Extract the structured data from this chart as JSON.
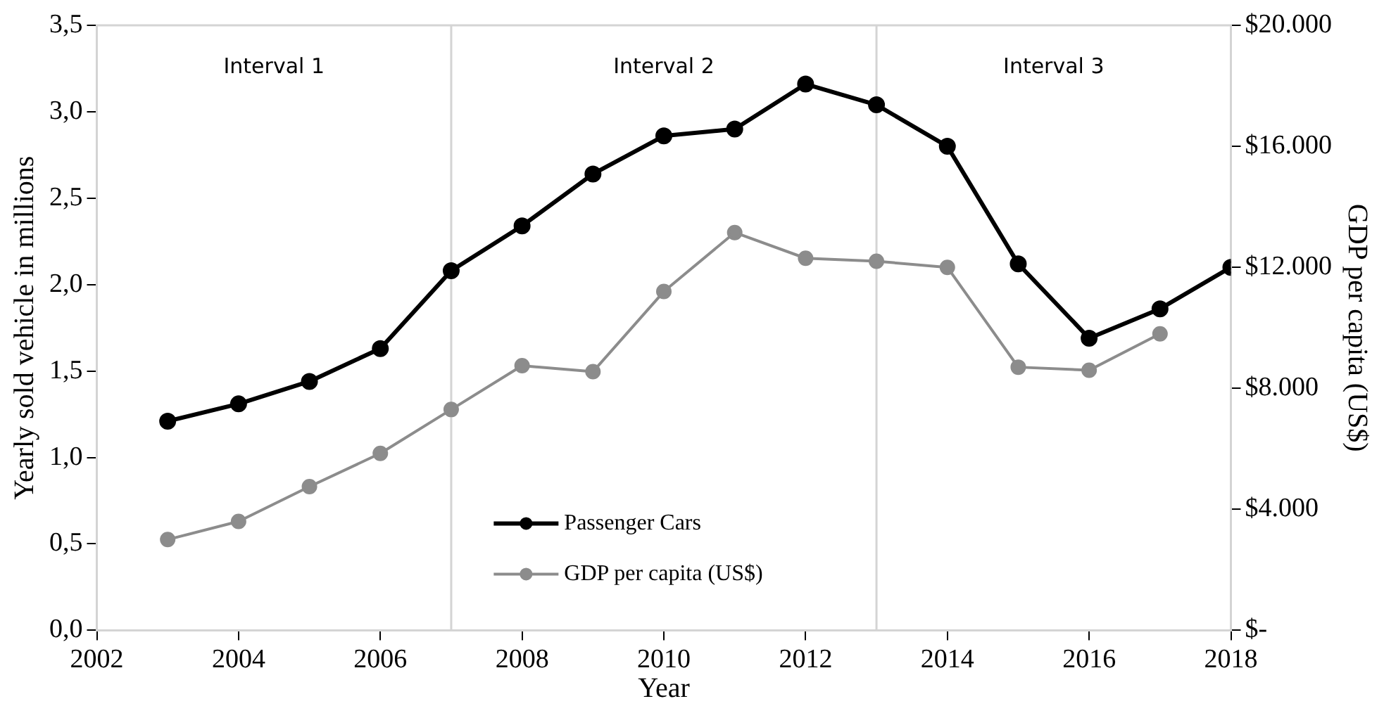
{
  "chart_data": {
    "type": "line",
    "xlabel": "Year",
    "ylabel": "Yearly sold vehicle in millions",
    "y2label": "GDP per capita (US$)",
    "x": [
      2003,
      2004,
      2005,
      2006,
      2007,
      2008,
      2009,
      2010,
      2011,
      2012,
      2013,
      2014,
      2015,
      2016,
      2017,
      2018
    ],
    "series": [
      {
        "name": "Passenger Cars",
        "color": "#000000",
        "values": [
          1.21,
          1.31,
          1.44,
          1.63,
          2.08,
          2.34,
          2.64,
          2.86,
          2.9,
          3.16,
          3.04,
          2.8,
          2.12,
          1.69,
          1.86,
          2.1
        ]
      },
      {
        "name": "GDP per capita (US$)",
        "color": "#8c8c8c",
        "axis": "y2",
        "values": [
          3000,
          3600,
          4750,
          5850,
          7300,
          8750,
          8550,
          11200,
          13150,
          12300,
          12200,
          12000,
          8700,
          8600,
          9800,
          null
        ]
      }
    ],
    "xlim": [
      2002,
      2018
    ],
    "xticks": [
      2002,
      2004,
      2006,
      2008,
      2010,
      2012,
      2014,
      2016,
      2018
    ],
    "ylim": [
      0,
      3.5
    ],
    "yticks": [
      {
        "value": 0,
        "label": "0,0"
      },
      {
        "value": 0.5,
        "label": "0,5"
      },
      {
        "value": 1,
        "label": "1,0"
      },
      {
        "value": 1.5,
        "label": "1,5"
      },
      {
        "value": 2,
        "label": "2,0"
      },
      {
        "value": 2.5,
        "label": "2,5"
      },
      {
        "value": 3,
        "label": "3,0"
      },
      {
        "value": 3.5,
        "label": "3,5"
      }
    ],
    "y2lim": [
      0,
      20000
    ],
    "y2ticks": [
      {
        "value": 0,
        "label": "$-"
      },
      {
        "value": 4000,
        "label": "$4.000"
      },
      {
        "value": 8000,
        "label": "$8.000"
      },
      {
        "value": 12000,
        "label": "$12.000"
      },
      {
        "value": 16000,
        "label": "$16.000"
      },
      {
        "value": 20000,
        "label": "$20.000"
      }
    ],
    "ref_lines": [
      {
        "axis": "x",
        "value": 2007,
        "color": "#d4d4d4"
      },
      {
        "axis": "x",
        "value": 2013,
        "color": "#d4d4d4"
      }
    ],
    "annotations": [
      "Interval 1",
      "Interval 2",
      "Interval 3"
    ],
    "grid": false,
    "legend": "bottom",
    "marker": "circle",
    "line_style": "solid"
  }
}
